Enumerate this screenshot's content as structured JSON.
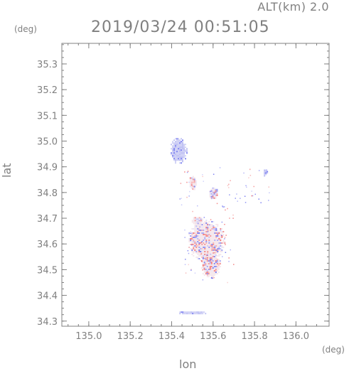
{
  "header": {
    "alt_label": "ALT(km) 2.0",
    "timestamp": "2019/03/24 00:51:05"
  },
  "chart_data": {
    "type": "heatmap",
    "xlabel": "lon",
    "ylabel": "lat",
    "x_unit": "(deg)",
    "y_unit": "(deg)",
    "xlim": [
      134.87,
      136.16
    ],
    "ylim": [
      34.28,
      35.38
    ],
    "xticks": [
      135.0,
      135.2,
      135.4,
      135.6,
      135.8,
      136.0
    ],
    "xtick_labels": [
      "135.0",
      "135.2",
      "135.4",
      "135.6",
      "135.8",
      "136.0"
    ],
    "yticks": [
      34.3,
      34.4,
      34.5,
      34.6,
      34.7,
      34.8,
      34.9,
      35.0,
      35.1,
      35.2,
      35.3
    ],
    "ytick_labels": [
      "34.3",
      "34.4",
      "34.5",
      "34.6",
      "34.7",
      "34.8",
      "34.9",
      "35.0",
      "35.1",
      "35.2",
      "35.3"
    ],
    "colors": {
      "negative": "#6f73f0",
      "positive": "#f06a6a",
      "neutral": "#ecebf6",
      "axis": "#808080"
    },
    "echo_regions": [
      {
        "lon": 135.43,
        "lat": 34.965,
        "rlon": 0.042,
        "rlat": 0.052,
        "tone": "negative",
        "strength": 0.55
      },
      {
        "lon": 135.565,
        "lat": 34.615,
        "rlon": 0.09,
        "rlat": 0.085,
        "tone": "mixed",
        "strength": 0.4
      },
      {
        "lon": 135.585,
        "lat": 34.52,
        "rlon": 0.05,
        "rlat": 0.05,
        "tone": "mixed",
        "strength": 0.35
      },
      {
        "lon": 135.52,
        "lat": 34.69,
        "rlon": 0.03,
        "rlat": 0.02,
        "tone": "mixed",
        "strength": 0.35
      },
      {
        "lon": 135.6,
        "lat": 34.8,
        "rlon": 0.025,
        "rlat": 0.025,
        "tone": "mixed",
        "strength": 0.4
      },
      {
        "lon": 135.5,
        "lat": 34.84,
        "rlon": 0.02,
        "rlat": 0.03,
        "tone": "mixed",
        "strength": 0.35
      },
      {
        "lon": 135.85,
        "lat": 34.88,
        "rlon": 0.012,
        "rlat": 0.015,
        "tone": "negative",
        "strength": 0.5
      },
      {
        "lon": 135.5,
        "lat": 34.335,
        "rlon": 0.07,
        "rlat": 0.008,
        "tone": "negative",
        "strength": 0.45
      }
    ]
  }
}
